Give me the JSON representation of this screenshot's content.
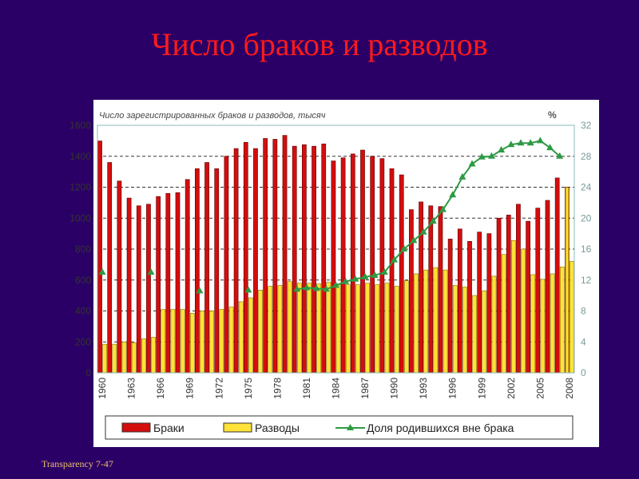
{
  "slide": {
    "title": "Число браков и разводов",
    "footer": "Transparency  7-47"
  },
  "chart_data": {
    "type": "bar",
    "title": "Число зарегистрированных браков и разводов, тысяч",
    "right_axis_label": "%",
    "years": [
      1960,
      1961,
      1962,
      1963,
      1964,
      1965,
      1966,
      1967,
      1968,
      1969,
      1970,
      1971,
      1972,
      1973,
      1974,
      1975,
      1976,
      1977,
      1978,
      1979,
      1980,
      1981,
      1982,
      1983,
      1984,
      1985,
      1986,
      1987,
      1988,
      1989,
      1990,
      1991,
      1992,
      1993,
      1994,
      1995,
      1996,
      1997,
      1998,
      1999,
      2000,
      2001,
      2002,
      2003,
      2004,
      2005,
      2006,
      2007,
      2008
    ],
    "x_tick_labels": [
      "1960",
      "1963",
      "1966",
      "1969",
      "1972",
      "1975",
      "1978",
      "1981",
      "1984",
      "1987",
      "1990",
      "1993",
      "1996",
      "1999",
      "2002",
      "2005",
      "2008"
    ],
    "ylim": [
      0,
      1600
    ],
    "y_ticks": [
      "0",
      "200",
      "400",
      "600",
      "800",
      "1000",
      "1200",
      "1400",
      "1600"
    ],
    "y2lim": [
      0,
      32
    ],
    "y2_ticks": [
      "0",
      "4",
      "8",
      "12",
      "16",
      "20",
      "24",
      "28",
      "32"
    ],
    "series": [
      {
        "name": "Браки",
        "color": "#d40d0d",
        "values": [
          1499,
          1360,
          1240,
          1130,
          1080,
          1090,
          1140,
          1160,
          1165,
          1250,
          1320,
          1360,
          1320,
          1400,
          1450,
          1490,
          1450,
          1515,
          1510,
          1535,
          1465,
          1475,
          1465,
          1480,
          1370,
          1390,
          1415,
          1440,
          1400,
          1385,
          1320,
          1280,
          1055,
          1105,
          1080,
          1075,
          865,
          930,
          850,
          910,
          900,
          1000,
          1020,
          1090,
          980,
          1065,
          1115,
          1260,
          1200
        ],
        "estimate_last": true
      },
      {
        "name": "Разводы",
        "color": "#ffe23a",
        "values": [
          185,
          185,
          200,
          195,
          220,
          230,
          410,
          410,
          410,
          385,
          400,
          400,
          410,
          425,
          460,
          485,
          535,
          560,
          565,
          590,
          580,
          580,
          575,
          585,
          575,
          570,
          570,
          580,
          570,
          580,
          560,
          595,
          640,
          665,
          680,
          665,
          565,
          555,
          500,
          530,
          625,
          765,
          855,
          800,
          635,
          605,
          640,
          685,
          720
        ]
      },
      {
        "name": "Доля родившихся вне брака",
        "color": "#2e9a44",
        "axis": "right",
        "type": "line",
        "x": [
          1960,
          1965,
          1970,
          1975,
          1980,
          1981,
          1982,
          1983,
          1984,
          1985,
          1986,
          1987,
          1988,
          1989,
          1990,
          1991,
          1992,
          1993,
          1994,
          1995,
          1996,
          1997,
          1998,
          1999,
          2000,
          2001,
          2002,
          2003,
          2004,
          2005,
          2006,
          2007
        ],
        "values": [
          13,
          13,
          10.6,
          10.7,
          10.8,
          11,
          10.9,
          10.8,
          11.3,
          11.8,
          12.1,
          12.4,
          12.6,
          13,
          14.6,
          16,
          17.1,
          18.2,
          19.6,
          21.1,
          23,
          25.3,
          27,
          27.9,
          28,
          28.8,
          29.5,
          29.7,
          29.7,
          30,
          29.1,
          28
        ]
      }
    ],
    "grid": "dashed at 1200 and 1400",
    "legend_position": "bottom"
  }
}
